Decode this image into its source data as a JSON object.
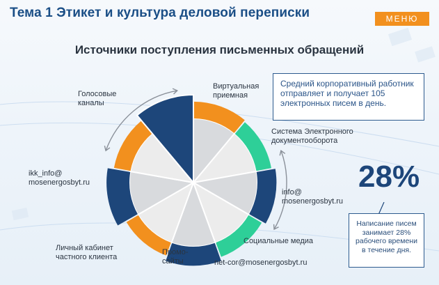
{
  "header": {
    "title": "Тема 1 Этикет и культура деловой переписки",
    "menu_label": "МЕНЮ"
  },
  "chart_title": "Источники поступления письменных обращений",
  "info": {
    "text": "Средний корпоративный работник отправляет и получает 105 электронных писем в день."
  },
  "stat": {
    "value": "28%",
    "caption": "Написание писем занимает 28% рабочего времени в течение дня."
  },
  "colors": {
    "navy": "#1d467a",
    "orange": "#f2901e",
    "teal": "#2ecf98",
    "grey_slice": "#d8dadd",
    "light_slice": "#ececec",
    "accent_title": "#1a4e86"
  },
  "chart_data": {
    "type": "pie",
    "title": "Источники поступления письменных обращений",
    "categories": [
      "Виртуальная приемная",
      "Система Электронного документооборота",
      "info@ mosenergosbyt.ru",
      "Социальные медиа",
      "net-cor@mosenergosbyt.ru",
      "Промо-сайты",
      "Личный кабинет частного клиента",
      "ikk_info@ mosenergosbyt.ru",
      "Голосовые каналы"
    ],
    "labels": [
      [
        "Виртуальная",
        "приемная"
      ],
      [
        "Система Электронного",
        "документооборота"
      ],
      [
        "info@",
        "mosenergosbyt.ru"
      ],
      [
        "Социальные медиа"
      ],
      [
        "net-cor@mosenergosbyt.ru"
      ],
      [
        "Промо-",
        "сайты"
      ],
      [
        "Личный кабинет",
        "частного клиента"
      ],
      [
        "ikk_info@",
        "mosenergosbyt.ru"
      ],
      [
        "Голосовые",
        "каналы"
      ]
    ],
    "values": [
      40,
      40,
      40,
      40,
      40,
      40,
      40,
      40,
      40
    ],
    "band": [
      "orange",
      "teal",
      "navy",
      "teal",
      "navy",
      "orange",
      "navy",
      "orange",
      "none"
    ],
    "band_level": [
      0.55,
      0.45,
      0.7,
      0.45,
      0.7,
      0.35,
      0.95,
      0.55,
      1.0
    ],
    "legend": "none"
  }
}
